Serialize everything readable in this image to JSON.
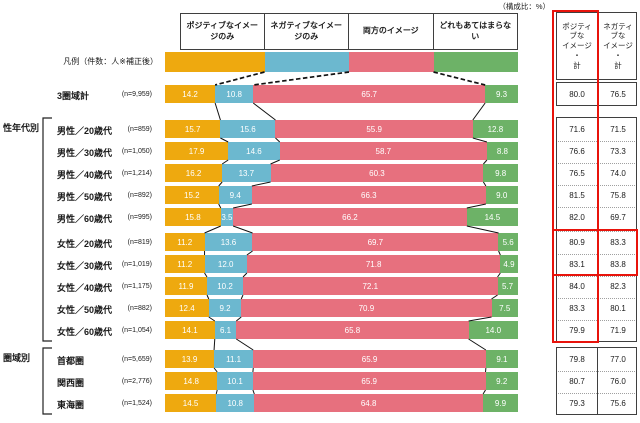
{
  "unit_label": "（構成比：%）",
  "legend": {
    "row_label": "凡例（件数：人※補正後）",
    "categories": [
      {
        "label": "ポジティブなイメージのみ",
        "color": "#EEA90F"
      },
      {
        "label": "ネガティブなイメージのみ",
        "color": "#6CB8CF"
      },
      {
        "label": "両方のイメージ",
        "color": "#E7707E"
      },
      {
        "label": "どれもあてはまらない",
        "color": "#6DB267"
      }
    ]
  },
  "totals_header": {
    "positive": "ポジティ\nブな\nイメージ\n・\n計",
    "negative": "ネガティ\nブな\nイメージ\n・\n計"
  },
  "highlight_color": "#e8130b",
  "chart_data": {
    "type": "bar",
    "stacked": true,
    "orientation": "horizontal",
    "unit": "構成比：%",
    "axis_range": [
      0,
      100
    ],
    "segments": [
      "ポジティブなイメージのみ",
      "ネガティブなイメージのみ",
      "両方のイメージ",
      "どれもあてはまらない"
    ],
    "segment_colors": [
      "#EEA90F",
      "#6CB8CF",
      "#E7707E",
      "#6DB267"
    ],
    "totals_columns": [
      "ポジティブなイメージ・計",
      "ネガティブなイメージ・計"
    ],
    "groups": [
      {
        "label": "",
        "rows": [
          {
            "name": "3圏域計",
            "n": "(n=9,959)",
            "values": [
              "14.2",
              "10.8",
              "65.7",
              "9.3"
            ],
            "pos": "80.0",
            "neg": "76.5"
          }
        ]
      },
      {
        "label": "性年代別",
        "rows": [
          {
            "name": "男性／20歳代",
            "n": "(n=859)",
            "values": [
              "15.7",
              "15.6",
              "55.9",
              "12.8"
            ],
            "pos": "71.6",
            "neg": "71.5"
          },
          {
            "name": "男性／30歳代",
            "n": "(n=1,050)",
            "values": [
              "17.9",
              "14.6",
              "58.7",
              "8.8"
            ],
            "pos": "76.6",
            "neg": "73.3"
          },
          {
            "name": "男性／40歳代",
            "n": "(n=1,214)",
            "values": [
              "16.2",
              "13.7",
              "60.3",
              "9.8"
            ],
            "pos": "76.5",
            "neg": "74.0"
          },
          {
            "name": "男性／50歳代",
            "n": "(n=892)",
            "values": [
              "15.2",
              "9.4",
              "66.3",
              "9.0"
            ],
            "pos": "81.5",
            "neg": "75.8"
          },
          {
            "name": "男性／60歳代",
            "n": "(n=995)",
            "values": [
              "15.8",
              "3.5",
              "66.2",
              "14.5"
            ],
            "pos": "82.0",
            "neg": "69.7"
          },
          {
            "name": "女性／20歳代",
            "n": "(n=819)",
            "values": [
              "11.2",
              "13.6",
              "69.7",
              "5.6"
            ],
            "pos": "80.9",
            "neg": "83.3"
          },
          {
            "name": "女性／30歳代",
            "n": "(n=1,019)",
            "values": [
              "11.2",
              "12.0",
              "71.8",
              "4.9"
            ],
            "pos": "83.1",
            "neg": "83.8"
          },
          {
            "name": "女性／40歳代",
            "n": "(n=1,175)",
            "values": [
              "11.9",
              "10.2",
              "72.1",
              "5.7"
            ],
            "pos": "84.0",
            "neg": "82.3"
          },
          {
            "name": "女性／50歳代",
            "n": "(n=882)",
            "values": [
              "12.4",
              "9.2",
              "70.9",
              "7.5"
            ],
            "pos": "83.3",
            "neg": "80.1"
          },
          {
            "name": "女性／60歳代",
            "n": "(n=1,054)",
            "values": [
              "14.1",
              "6.1",
              "65.8",
              "14.0"
            ],
            "pos": "79.9",
            "neg": "71.9"
          }
        ]
      },
      {
        "label": "圏域別",
        "rows": [
          {
            "name": "首都圏",
            "n": "(n=5,659)",
            "values": [
              "13.9",
              "11.1",
              "65.9",
              "9.1"
            ],
            "pos": "79.8",
            "neg": "77.0"
          },
          {
            "name": "関西圏",
            "n": "(n=2,776)",
            "values": [
              "14.8",
              "10.1",
              "65.9",
              "9.2"
            ],
            "pos": "80.7",
            "neg": "76.0"
          },
          {
            "name": "東海圏",
            "n": "(n=1,524)",
            "values": [
              "14.5",
              "10.8",
              "64.8",
              "9.9"
            ],
            "pos": "79.3",
            "neg": "75.6"
          }
        ]
      }
    ]
  }
}
